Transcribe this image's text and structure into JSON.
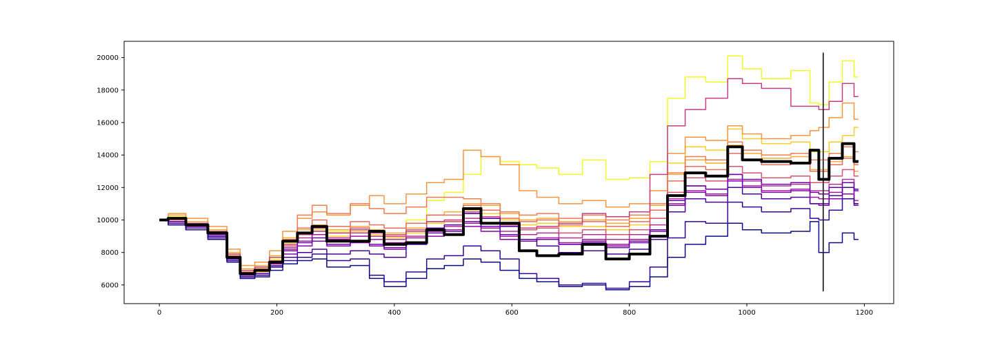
{
  "chart_data": {
    "type": "line",
    "title": "",
    "xlabel": "",
    "ylabel": "",
    "xlim": [
      -60,
      1250
    ],
    "ylim": [
      4850,
      21000
    ],
    "x_ticks": [
      0,
      200,
      400,
      600,
      800,
      1000,
      1200
    ],
    "y_ticks": [
      6000,
      8000,
      10000,
      12000,
      14000,
      16000,
      18000,
      20000
    ],
    "x_tick_labels": [
      "0",
      "200",
      "400",
      "600",
      "800",
      "1000",
      "1200"
    ],
    "y_tick_labels": [
      "6000",
      "8000",
      "10000",
      "12000",
      "14000",
      "16000",
      "18000",
      "20000"
    ],
    "grid": false,
    "legend": "none",
    "vertical_marker": {
      "x": 1130,
      "y_range": [
        5600,
        20300
      ],
      "color": "#000000"
    },
    "x_points": [
      0,
      30,
      60,
      105,
      125,
      150,
      175,
      200,
      220,
      250,
      270,
      300,
      350,
      365,
      400,
      440,
      470,
      500,
      535,
      560,
      600,
      625,
      660,
      700,
      740,
      780,
      820,
      850,
      880,
      910,
      950,
      985,
      1000,
      1050,
      1100,
      1115,
      1130,
      1150,
      1175,
      1190
    ],
    "series": [
      {
        "color": "#f0f921",
        "values": [
          10000,
          10200,
          9800,
          9300,
          7900,
          6900,
          7100,
          7600,
          8500,
          9200,
          9600,
          9300,
          9500,
          9300,
          9100,
          10000,
          11200,
          11700,
          12800,
          13900,
          13600,
          13400,
          13200,
          12800,
          13700,
          12500,
          12600,
          13600,
          17500,
          18800,
          18500,
          20100,
          19300,
          18700,
          19200,
          17200,
          17100,
          18500,
          19800,
          18800
        ]
      },
      {
        "color": "#fccd25",
        "values": [
          10000,
          10000,
          9600,
          9100,
          7600,
          6600,
          6800,
          7500,
          8600,
          9100,
          9400,
          9000,
          9300,
          9100,
          8900,
          9200,
          9800,
          9900,
          10600,
          10400,
          10000,
          9700,
          9800,
          9600,
          9600,
          9400,
          9700,
          10600,
          13500,
          14500,
          14300,
          15600,
          15000,
          14700,
          14800,
          14200,
          14200,
          14800,
          15200,
          15700
        ]
      },
      {
        "color": "#feaa31",
        "values": [
          10000,
          10300,
          9900,
          9400,
          8000,
          7000,
          7200,
          7800,
          8900,
          9400,
          9700,
          9400,
          9600,
          9400,
          9200,
          9500,
          10300,
          10500,
          11000,
          10900,
          10400,
          10000,
          10100,
          9900,
          10000,
          9800,
          10100,
          10900,
          12800,
          13700,
          13500,
          14600,
          14100,
          13800,
          13900,
          13100,
          13100,
          13600,
          13900,
          13000
        ]
      },
      {
        "color": "#f8943e",
        "values": [
          10000,
          10400,
          10100,
          9600,
          8200,
          7200,
          7400,
          8100,
          9300,
          10100,
          10500,
          10300,
          10900,
          11500,
          11000,
          11600,
          12300,
          12500,
          14300,
          13900,
          13400,
          11800,
          11400,
          11000,
          11200,
          10800,
          11000,
          11800,
          14100,
          15100,
          14900,
          15800,
          15300,
          15000,
          15200,
          15500,
          15700,
          16300,
          17200,
          16200
        ]
      },
      {
        "color": "#f07b4f",
        "values": [
          10000,
          10100,
          9800,
          9200,
          7800,
          6800,
          7000,
          7700,
          8800,
          10300,
          10900,
          10400,
          11000,
          10700,
          10400,
          10800,
          11400,
          11400,
          11300,
          11000,
          10500,
          10300,
          10400,
          10100,
          10300,
          10000,
          10300,
          11000,
          12900,
          13900,
          13700,
          14800,
          14300,
          14000,
          14100,
          13700,
          13700,
          14100,
          14500,
          14200
        ]
      },
      {
        "color": "#e66c5c",
        "values": [
          10000,
          10000,
          9700,
          9100,
          7700,
          6700,
          6900,
          7500,
          8700,
          9500,
          10000,
          9600,
          9900,
          9700,
          9500,
          9800,
          10300,
          10300,
          10900,
          10600,
          10100,
          9900,
          10000,
          9700,
          9900,
          9600,
          9900,
          10600,
          12400,
          13300,
          13100,
          14100,
          13700,
          13400,
          13500,
          13000,
          13000,
          13400,
          13800,
          13400
        ]
      },
      {
        "color": "#d5546e",
        "values": [
          10000,
          9900,
          9600,
          9000,
          7600,
          6500,
          6700,
          7300,
          8400,
          9100,
          9600,
          9200,
          9500,
          9300,
          9100,
          9400,
          9900,
          9900,
          10400,
          10100,
          9600,
          9400,
          9500,
          9200,
          9400,
          9100,
          9400,
          10100,
          11700,
          12600,
          12400,
          13300,
          12900,
          12600,
          12700,
          12300,
          12300,
          12700,
          13100,
          12700
        ]
      },
      {
        "color": "#c43e7f",
        "values": [
          10000,
          10100,
          9800,
          9300,
          7900,
          6900,
          7100,
          7700,
          8500,
          9100,
          9500,
          9200,
          9400,
          9200,
          9000,
          9300,
          9900,
          10000,
          10500,
          10200,
          9700,
          9500,
          9600,
          9800,
          10400,
          10200,
          10500,
          12800,
          15800,
          16800,
          17500,
          18700,
          18400,
          18100,
          17000,
          17000,
          16800,
          17300,
          18400,
          17600
        ]
      },
      {
        "color": "#b0308e",
        "values": [
          10000,
          9800,
          9500,
          8900,
          7400,
          6400,
          6600,
          7200,
          8300,
          8900,
          9300,
          8900,
          9200,
          9000,
          8800,
          9000,
          9500,
          9600,
          10100,
          9800,
          9300,
          9100,
          9200,
          8900,
          9100,
          8800,
          9100,
          9700,
          11300,
          12100,
          11900,
          12800,
          12400,
          12100,
          12200,
          11800,
          11800,
          12200,
          12500,
          11200
        ]
      },
      {
        "color": "#9c179e",
        "values": [
          10000,
          9900,
          9600,
          9000,
          7500,
          6500,
          6700,
          7300,
          8200,
          8700,
          9100,
          8800,
          9000,
          8800,
          8600,
          8900,
          9300,
          9400,
          9800,
          9500,
          9000,
          8800,
          8900,
          8600,
          8800,
          8500,
          8800,
          9400,
          11000,
          11800,
          11600,
          12500,
          12100,
          11800,
          11900,
          11400,
          11300,
          11700,
          12000,
          11000
        ]
      },
      {
        "color": "#8405a7",
        "values": [
          10000,
          9800,
          9500,
          9000,
          7500,
          6400,
          6600,
          7100,
          7900,
          8400,
          8700,
          8400,
          8600,
          8400,
          8200,
          8500,
          9000,
          9100,
          9600,
          9300,
          8800,
          8700,
          8800,
          8500,
          8700,
          8400,
          8700,
          9300,
          10900,
          11700,
          11500,
          12400,
          12000,
          11700,
          11800,
          11000,
          10900,
          11300,
          11600,
          10900
        ]
      },
      {
        "color": "#6a00a8",
        "values": [
          10000,
          9900,
          9600,
          9100,
          7700,
          6700,
          6900,
          7400,
          8100,
          8600,
          8900,
          8500,
          8700,
          8500,
          8300,
          8600,
          9200,
          9300,
          9900,
          9600,
          9100,
          8800,
          8800,
          8500,
          8600,
          8300,
          8600,
          9400,
          11200,
          12100,
          11900,
          12800,
          12500,
          12200,
          12300,
          11700,
          11600,
          12000,
          12300,
          11800
        ]
      },
      {
        "color": "#4c02a1",
        "values": [
          10000,
          9800,
          9500,
          9000,
          7600,
          6600,
          6700,
          7200,
          7700,
          8000,
          8200,
          7900,
          8100,
          7900,
          7700,
          8500,
          9500,
          9700,
          10400,
          10100,
          9600,
          8800,
          8400,
          8000,
          8100,
          7900,
          8200,
          8800,
          10500,
          11300,
          11100,
          12000,
          11600,
          11300,
          11400,
          11000,
          11000,
          11500,
          12000,
          11900
        ]
      },
      {
        "color": "#2e0595",
        "values": [
          10000,
          9700,
          9400,
          8900,
          7500,
          6500,
          6600,
          7100,
          7500,
          7700,
          7900,
          7500,
          7600,
          6600,
          6200,
          6800,
          7600,
          7800,
          8400,
          8100,
          7600,
          6700,
          6400,
          6000,
          6100,
          5800,
          6200,
          7100,
          8900,
          9900,
          9800,
          11100,
          10800,
          10500,
          10700,
          10100,
          10000,
          10600,
          11300,
          11000
        ]
      },
      {
        "color": "#0d0887",
        "values": [
          10000,
          9700,
          9400,
          8800,
          7400,
          6400,
          6500,
          6900,
          7300,
          7500,
          7600,
          7100,
          7200,
          6400,
          5900,
          6400,
          7000,
          7200,
          7600,
          7400,
          6900,
          6400,
          6200,
          5900,
          6000,
          5700,
          5900,
          6500,
          7700,
          8500,
          9000,
          9800,
          9400,
          9200,
          9300,
          9900,
          8000,
          8600,
          9200,
          8800
        ]
      },
      {
        "color": "#000000",
        "width": 4,
        "values": [
          10000,
          10100,
          9700,
          9200,
          7700,
          6700,
          6900,
          7400,
          8700,
          9200,
          9600,
          8700,
          8700,
          9300,
          8500,
          8600,
          9400,
          9100,
          10700,
          9800,
          9800,
          8100,
          7800,
          7900,
          8500,
          7600,
          7900,
          9000,
          11500,
          12900,
          12700,
          14500,
          13700,
          13600,
          13500,
          14300,
          12500,
          13800,
          14700,
          13600
        ]
      }
    ]
  }
}
